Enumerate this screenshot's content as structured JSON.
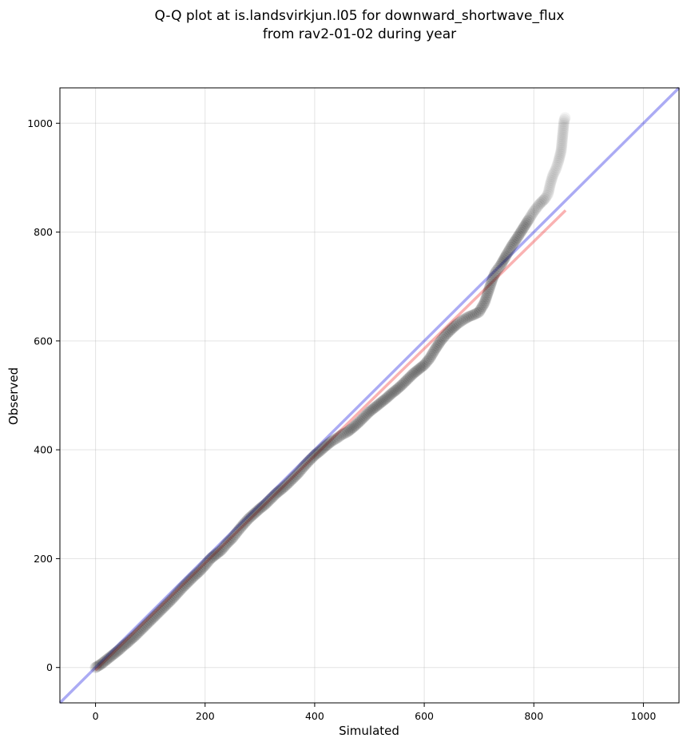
{
  "chart_data": {
    "type": "scatter",
    "title": "Q-Q plot at is.landsvirkjun.l05 for downward_shortwave_flux",
    "subtitle": "from rav2-01-02 during year",
    "xlabel": "Simulated",
    "ylabel": "Observed",
    "xlim": [
      -65,
      1065
    ],
    "ylim": [
      -65,
      1065
    ],
    "x_ticks": [
      0,
      200,
      400,
      600,
      800,
      1000
    ],
    "y_ticks": [
      0,
      200,
      400,
      600,
      800,
      1000
    ],
    "grid": true,
    "legend": "none",
    "quantiles": [
      [
        0,
        0
      ],
      [
        5,
        3
      ],
      [
        10,
        6
      ],
      [
        15,
        10
      ],
      [
        20,
        14
      ],
      [
        25,
        18
      ],
      [
        30,
        22
      ],
      [
        35,
        26
      ],
      [
        40,
        30
      ],
      [
        45,
        34
      ],
      [
        50,
        39
      ],
      [
        55,
        43
      ],
      [
        60,
        47
      ],
      [
        65,
        52
      ],
      [
        70,
        56
      ],
      [
        75,
        61
      ],
      [
        80,
        66
      ],
      [
        85,
        71
      ],
      [
        90,
        76
      ],
      [
        95,
        81
      ],
      [
        100,
        86
      ],
      [
        110,
        96
      ],
      [
        120,
        106
      ],
      [
        130,
        116
      ],
      [
        140,
        126
      ],
      [
        150,
        137
      ],
      [
        160,
        148
      ],
      [
        170,
        158
      ],
      [
        180,
        168
      ],
      [
        190,
        177
      ],
      [
        200,
        188
      ],
      [
        210,
        200
      ],
      [
        220,
        208
      ],
      [
        230,
        216
      ],
      [
        240,
        228
      ],
      [
        250,
        238
      ],
      [
        260,
        251
      ],
      [
        270,
        263
      ],
      [
        280,
        274
      ],
      [
        290,
        283
      ],
      [
        300,
        292
      ],
      [
        310,
        300
      ],
      [
        320,
        310
      ],
      [
        330,
        320
      ],
      [
        340,
        328
      ],
      [
        350,
        337
      ],
      [
        360,
        347
      ],
      [
        370,
        357
      ],
      [
        380,
        369
      ],
      [
        390,
        380
      ],
      [
        400,
        390
      ],
      [
        410,
        398
      ],
      [
        420,
        407
      ],
      [
        430,
        415
      ],
      [
        440,
        421
      ],
      [
        450,
        428
      ],
      [
        460,
        433
      ],
      [
        470,
        441
      ],
      [
        480,
        450
      ],
      [
        490,
        460
      ],
      [
        500,
        470
      ],
      [
        510,
        478
      ],
      [
        520,
        486
      ],
      [
        530,
        494
      ],
      [
        540,
        503
      ],
      [
        550,
        511
      ],
      [
        560,
        520
      ],
      [
        570,
        530
      ],
      [
        580,
        540
      ],
      [
        590,
        548
      ],
      [
        600,
        556
      ],
      [
        610,
        568
      ],
      [
        620,
        585
      ],
      [
        630,
        600
      ],
      [
        640,
        612
      ],
      [
        650,
        622
      ],
      [
        660,
        631
      ],
      [
        670,
        638
      ],
      [
        680,
        644
      ],
      [
        690,
        648
      ],
      [
        700,
        653
      ],
      [
        710,
        670
      ],
      [
        715,
        685
      ],
      [
        720,
        700
      ],
      [
        725,
        715
      ],
      [
        730,
        726
      ],
      [
        735,
        733
      ],
      [
        740,
        740
      ],
      [
        750,
        758
      ],
      [
        760,
        775
      ],
      [
        770,
        790
      ],
      [
        780,
        806
      ],
      [
        790,
        822
      ],
      [
        800,
        838
      ],
      [
        810,
        851
      ],
      [
        820,
        861
      ],
      [
        826,
        870
      ],
      [
        830,
        888
      ],
      [
        835,
        905
      ],
      [
        840,
        915
      ],
      [
        845,
        930
      ],
      [
        850,
        950
      ],
      [
        855,
        1003
      ],
      [
        857,
        1010
      ]
    ],
    "reference_line": {
      "name": "1:1",
      "color": "#0000dd",
      "x": [
        -65,
        1065
      ],
      "y": [
        -65,
        1065
      ]
    },
    "fit_line": {
      "color": "#ee0000",
      "x": [
        0,
        858
      ],
      "y": [
        -5,
        840
      ]
    },
    "point_color": "#111111"
  }
}
